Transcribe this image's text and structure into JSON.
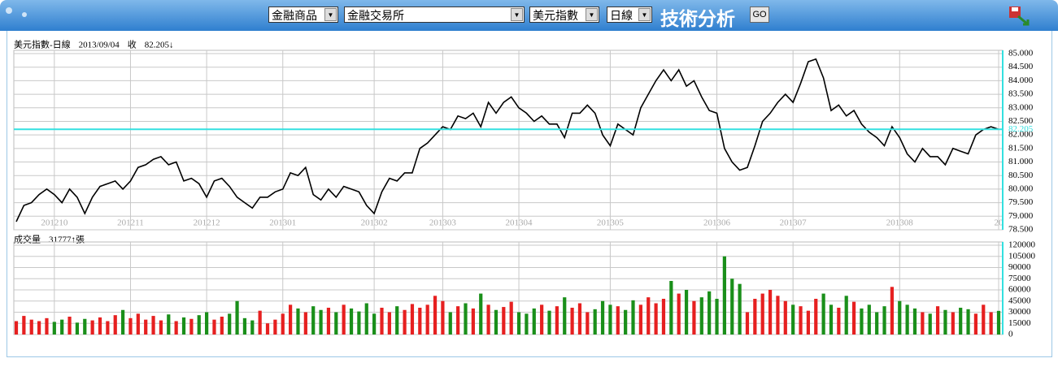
{
  "toolbar": {
    "selects": [
      "金融商品",
      "金融交易所",
      "美元指數",
      "日線"
    ],
    "title": "技術分析",
    "button": "GO"
  },
  "chart_data": [
    {
      "type": "line",
      "info": [
        "美元指數-日線",
        "2013/09/04",
        "收",
        "82.205↓"
      ],
      "color": "#000000",
      "values": [
        78.8,
        79.4,
        79.5,
        79.8,
        80.0,
        79.8,
        79.5,
        80.0,
        79.7,
        79.1,
        79.7,
        80.1,
        80.2,
        80.3,
        80.0,
        80.3,
        80.8,
        80.9,
        81.1,
        81.2,
        80.9,
        81.0,
        80.3,
        80.4,
        80.2,
        79.7,
        80.3,
        80.4,
        80.1,
        79.7,
        79.5,
        79.3,
        79.7,
        79.7,
        79.9,
        80.0,
        80.6,
        80.5,
        80.8,
        79.8,
        79.6,
        80.0,
        79.7,
        80.1,
        80.0,
        79.9,
        79.4,
        79.1,
        79.9,
        80.4,
        80.3,
        80.6,
        80.6,
        81.5,
        81.7,
        82.0,
        82.3,
        82.2,
        82.7,
        82.6,
        82.8,
        82.3,
        83.2,
        82.8,
        83.2,
        83.4,
        83.0,
        82.8,
        82.5,
        82.7,
        82.4,
        82.4,
        81.9,
        82.8,
        82.8,
        83.1,
        82.8,
        82.0,
        81.6,
        82.4,
        82.2,
        82.0,
        83.0,
        83.5,
        84.0,
        84.4,
        84.0,
        84.4,
        83.8,
        84.0,
        83.4,
        82.9,
        82.8,
        81.5,
        81.0,
        80.7,
        80.8,
        81.6,
        82.5,
        82.8,
        83.2,
        83.5,
        83.2,
        83.9,
        84.7,
        84.8,
        84.1,
        82.9,
        83.1,
        82.7,
        82.9,
        82.4,
        82.1,
        81.9,
        81.6,
        82.3,
        81.9,
        81.3,
        81.0,
        81.5,
        81.2,
        81.2,
        80.9,
        81.5,
        81.4,
        81.3,
        82.0,
        82.2,
        82.3,
        82.205
      ],
      "last": {
        "value": 82.205,
        "label": "82.205"
      },
      "last_color": "#33e0e0",
      "xlim": [
        0,
        129
      ],
      "xticks": [
        {
          "value": 5,
          "label": "201210"
        },
        {
          "value": 15,
          "label": "201211"
        },
        {
          "value": 25,
          "label": "201212"
        },
        {
          "value": 35,
          "label": "201301"
        },
        {
          "value": 47,
          "label": "201302"
        },
        {
          "value": 56,
          "label": "201303"
        },
        {
          "value": 66,
          "label": "201304"
        },
        {
          "value": 78,
          "label": "201305"
        },
        {
          "value": 92,
          "label": "201306"
        },
        {
          "value": 102,
          "label": "201307"
        },
        {
          "value": 116,
          "label": "201308"
        },
        {
          "value": 129,
          "label": "20"
        }
      ],
      "ylim": [
        78.5,
        85
      ],
      "yticks": [
        {
          "value": 78.5,
          "label": "78.500"
        },
        {
          "value": 79,
          "label": "79.000"
        },
        {
          "value": 79.5,
          "label": "79.500"
        },
        {
          "value": 80,
          "label": "80.000"
        },
        {
          "value": 80.5,
          "label": "80.500"
        },
        {
          "value": 81,
          "label": "81.000"
        },
        {
          "value": 81.5,
          "label": "81.500"
        },
        {
          "value": 82,
          "label": "82.000"
        },
        {
          "value": 82.5,
          "label": "82.500"
        },
        {
          "value": 83,
          "label": "83.000"
        },
        {
          "value": 83.5,
          "label": "83.500"
        },
        {
          "value": 84,
          "label": "84.000"
        },
        {
          "value": 84.5,
          "label": "84.500"
        },
        {
          "value": 85,
          "label": "85.000"
        }
      ],
      "grid": true
    },
    {
      "type": "bar",
      "info": [
        "成交量",
        "31777↑張"
      ],
      "up_color": "#e62020",
      "down_color": "#1a8f1a",
      "values": [
        18000,
        25000,
        20000,
        18000,
        22000,
        17000,
        20000,
        24000,
        16000,
        21000,
        19000,
        23000,
        18000,
        26000,
        33000,
        22000,
        28000,
        20000,
        25000,
        19000,
        27000,
        18000,
        23000,
        21000,
        26000,
        30000,
        20000,
        24000,
        28000,
        45000,
        22000,
        19000,
        32000,
        15000,
        20000,
        28000,
        40000,
        35000,
        30000,
        38000,
        33000,
        36000,
        30000,
        40000,
        35000,
        31000,
        42000,
        28000,
        36000,
        30000,
        38000,
        33000,
        41000,
        36000,
        40000,
        52000,
        45000,
        30000,
        38000,
        42000,
        35000,
        55000,
        40000,
        33000,
        37000,
        44000,
        30000,
        28000,
        35000,
        40000,
        32000,
        38000,
        50000,
        36000,
        42000,
        30000,
        34000,
        45000,
        40000,
        38000,
        33000,
        46000,
        40000,
        50000,
        42000,
        48000,
        72000,
        55000,
        60000,
        45000,
        50000,
        58000,
        48000,
        105000,
        75000,
        68000,
        30000,
        48000,
        55000,
        60000,
        52000,
        45000,
        40000,
        38000,
        32000,
        48000,
        55000,
        40000,
        36000,
        52000,
        44000,
        35000,
        40000,
        30000,
        38000,
        64000,
        45000,
        40000,
        35000,
        30000,
        28000,
        38000,
        33000,
        30000,
        36000,
        34000,
        28000,
        40000,
        30000,
        31777
      ],
      "xlim": [
        0,
        129
      ],
      "ylim": [
        0,
        120000
      ],
      "yticks": [
        0,
        15000,
        30000,
        45000,
        60000,
        75000,
        90000,
        105000,
        120000
      ],
      "grid": true
    }
  ]
}
